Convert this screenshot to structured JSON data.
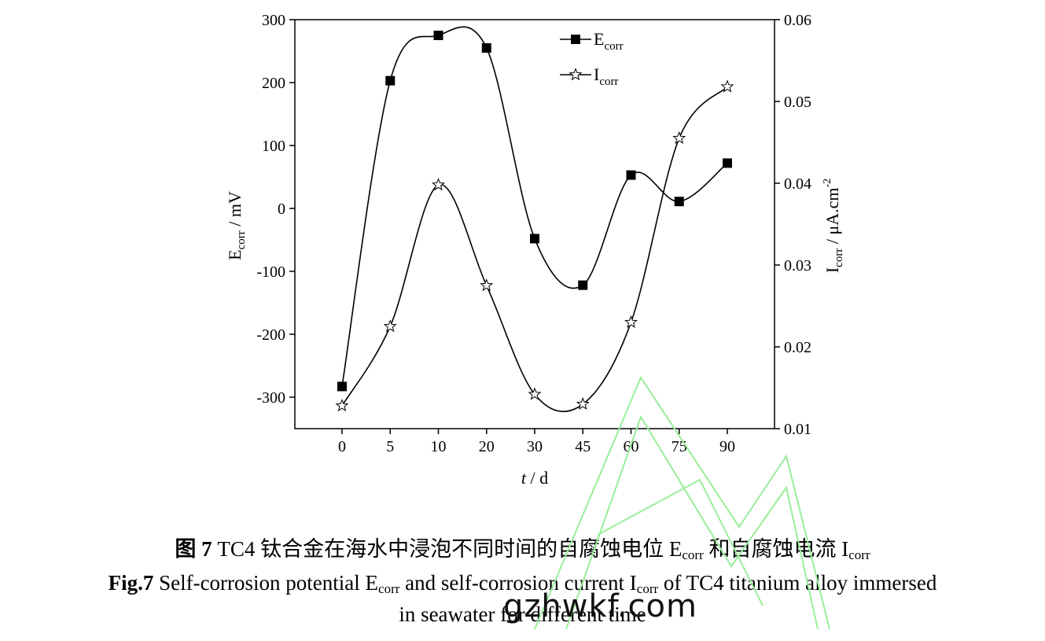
{
  "chart_data": {
    "type": "line",
    "categories": [
      "0",
      "5",
      "10",
      "20",
      "30",
      "45",
      "60",
      "75",
      "90"
    ],
    "series": [
      {
        "name": "E_corr",
        "legend_main": "E",
        "legend_sub": "corr",
        "axis": "left",
        "marker": "filled-square",
        "values": [
          -283,
          203,
          275,
          255,
          -48,
          -122,
          53,
          11,
          72
        ]
      },
      {
        "name": "I_corr",
        "legend_main": "I",
        "legend_sub": "corr",
        "axis": "right",
        "marker": "open-star",
        "values": [
          0.0128,
          0.0225,
          0.0398,
          0.0275,
          0.0142,
          0.013,
          0.023,
          0.0455,
          0.0518
        ]
      }
    ],
    "xlabel_italic": "t",
    "xlabel_rest": " / d",
    "ylabel_left": {
      "main": "E",
      "sub": "corr",
      "rest": " / mV"
    },
    "ylabel_right": {
      "main": "I",
      "sub": "corr",
      "rest": "  /  μA.cm",
      "sup": "-2"
    },
    "ylim_left": [
      -350,
      300
    ],
    "ylim_right": [
      0.01,
      0.06
    ],
    "yticks_left": [
      300,
      200,
      100,
      0,
      -100,
      -200,
      -300
    ],
    "yticks_right": [
      "0.06",
      "0.05",
      "0.04",
      "0.03",
      "0.02",
      "0.01"
    ],
    "ytick_right_values": [
      0.06,
      0.05,
      0.04,
      0.03,
      0.02,
      0.01
    ],
    "grid": false,
    "legend_position": "top-center"
  },
  "caption": {
    "zh_label": "图 7",
    "zh_a": " TC4 钛合金在海水中浸泡不同时间的自腐蚀电位 E",
    "zh_sub1": "corr",
    "zh_b": " 和自腐蚀电流 I",
    "zh_sub2": "corr",
    "en_label": "Fig.7",
    "en_a": " Self-corrosion potential E",
    "en_sub1": "corr",
    "en_b": " and self-corrosion current I",
    "en_sub2": "corr",
    "en_c": " of TC4 titanium alloy immersed",
    "en_line2": "in seawater for different time"
  },
  "watermark": "gzhwkf.com",
  "colors": {
    "axis": "#000000",
    "watermark_outline": "#99ee99"
  }
}
